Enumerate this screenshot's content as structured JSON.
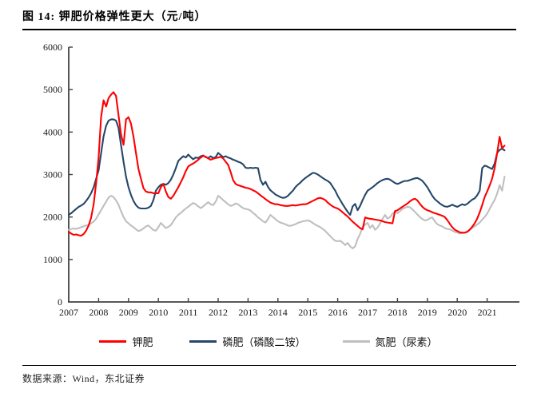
{
  "header": {
    "title": "图 14: 钾肥价格弹性更大（元/吨）"
  },
  "footer": {
    "source": "数据来源：Wind，东北证券"
  },
  "chart_data": {
    "type": "line",
    "title": "钾肥价格弹性更大（元/吨）",
    "xlabel": "",
    "ylabel": "",
    "unit": "元/吨",
    "x_start": "2007-01",
    "frequency": "monthly",
    "x_tick_labels": [
      "2007",
      "2008",
      "2009",
      "2010",
      "2011",
      "2012",
      "2013",
      "2014",
      "2015",
      "2016",
      "2017",
      "2018",
      "2019",
      "2020",
      "2021"
    ],
    "ylim": [
      0,
      6000
    ],
    "y_ticks": [
      0,
      1000,
      2000,
      3000,
      4000,
      5000,
      6000
    ],
    "grid": false,
    "legend_position": "bottom",
    "axis_color": "#404040",
    "series": [
      {
        "name": "钾肥",
        "color": "#fe0000",
        "values": [
          1650,
          1610,
          1580,
          1590,
          1570,
          1560,
          1600,
          1680,
          1800,
          1980,
          2300,
          2800,
          3400,
          4350,
          4750,
          4600,
          4800,
          4880,
          4940,
          4850,
          4400,
          3950,
          3700,
          4300,
          4350,
          4200,
          3900,
          3500,
          3130,
          2900,
          2680,
          2600,
          2580,
          2580,
          2560,
          2560,
          2560,
          2700,
          2780,
          2600,
          2470,
          2430,
          2500,
          2600,
          2700,
          2820,
          2940,
          3080,
          3190,
          3230,
          3260,
          3300,
          3350,
          3400,
          3440,
          3420,
          3380,
          3350,
          3370,
          3390,
          3400,
          3420,
          3380,
          3300,
          3230,
          3060,
          2870,
          2780,
          2750,
          2730,
          2710,
          2690,
          2680,
          2660,
          2630,
          2600,
          2560,
          2510,
          2470,
          2420,
          2380,
          2340,
          2320,
          2300,
          2300,
          2280,
          2270,
          2260,
          2260,
          2270,
          2280,
          2270,
          2280,
          2290,
          2300,
          2300,
          2320,
          2350,
          2380,
          2410,
          2440,
          2450,
          2430,
          2400,
          2340,
          2290,
          2250,
          2220,
          2200,
          2160,
          2110,
          2060,
          2010,
          1950,
          1890,
          1840,
          1790,
          1740,
          1710,
          1990,
          1970,
          1960,
          1950,
          1940,
          1930,
          1920,
          1900,
          1880,
          1870,
          1860,
          1850,
          2140,
          2160,
          2200,
          2240,
          2280,
          2320,
          2370,
          2410,
          2430,
          2390,
          2310,
          2240,
          2190,
          2160,
          2140,
          2110,
          2090,
          2070,
          2050,
          2030,
          2000,
          1930,
          1840,
          1760,
          1700,
          1670,
          1640,
          1630,
          1630,
          1650,
          1700,
          1770,
          1850,
          1960,
          2110,
          2280,
          2470,
          2600,
          2740,
          2900,
          3150,
          3500,
          3890,
          3620,
          3680
        ]
      },
      {
        "name": "磷肥（磷酸二铵）",
        "color": "#254769",
        "values": [
          2050,
          2090,
          2140,
          2190,
          2240,
          2270,
          2310,
          2380,
          2460,
          2560,
          2700,
          2900,
          3100,
          3500,
          3900,
          4150,
          4270,
          4300,
          4300,
          4270,
          4100,
          3700,
          3300,
          2950,
          2700,
          2520,
          2380,
          2280,
          2220,
          2200,
          2200,
          2200,
          2220,
          2260,
          2400,
          2620,
          2700,
          2760,
          2780,
          2760,
          2800,
          2880,
          3000,
          3150,
          3320,
          3380,
          3430,
          3400,
          3470,
          3410,
          3360,
          3400,
          3390,
          3430,
          3450,
          3410,
          3390,
          3430,
          3390,
          3410,
          3510,
          3460,
          3410,
          3430,
          3400,
          3380,
          3350,
          3330,
          3300,
          3280,
          3240,
          3160,
          3150,
          3160,
          3150,
          3160,
          3150,
          2870,
          2760,
          2830,
          2710,
          2630,
          2580,
          2530,
          2500,
          2470,
          2450,
          2460,
          2500,
          2560,
          2620,
          2700,
          2760,
          2810,
          2870,
          2920,
          2960,
          3000,
          3040,
          3030,
          3000,
          2960,
          2920,
          2880,
          2850,
          2800,
          2710,
          2620,
          2500,
          2400,
          2300,
          2210,
          2120,
          2050,
          2250,
          2310,
          2160,
          2260,
          2400,
          2520,
          2620,
          2660,
          2700,
          2750,
          2800,
          2840,
          2870,
          2890,
          2900,
          2880,
          2840,
          2800,
          2780,
          2800,
          2830,
          2850,
          2850,
          2870,
          2890,
          2910,
          2920,
          2890,
          2850,
          2780,
          2700,
          2600,
          2500,
          2420,
          2370,
          2320,
          2280,
          2250,
          2240,
          2260,
          2290,
          2260,
          2240,
          2270,
          2300,
          2280,
          2310,
          2360,
          2410,
          2440,
          2510,
          2620,
          3150,
          3210,
          3190,
          3160,
          3130,
          3260,
          3510,
          3580,
          3610,
          3570
        ]
      },
      {
        "name": "氮肥（尿素）",
        "color": "#bfbfbf",
        "values": [
          1700,
          1720,
          1730,
          1720,
          1740,
          1760,
          1780,
          1800,
          1820,
          1850,
          1890,
          1960,
          2060,
          2160,
          2260,
          2360,
          2460,
          2500,
          2470,
          2390,
          2290,
          2140,
          2000,
          1900,
          1850,
          1800,
          1760,
          1710,
          1670,
          1690,
          1730,
          1780,
          1800,
          1750,
          1690,
          1680,
          1760,
          1860,
          1800,
          1740,
          1770,
          1810,
          1900,
          1990,
          2050,
          2100,
          2150,
          2200,
          2240,
          2290,
          2330,
          2300,
          2250,
          2210,
          2250,
          2300,
          2350,
          2300,
          2280,
          2360,
          2500,
          2450,
          2400,
          2350,
          2300,
          2260,
          2280,
          2320,
          2300,
          2250,
          2210,
          2190,
          2180,
          2150,
          2100,
          2050,
          1990,
          1950,
          1900,
          1870,
          1950,
          2050,
          2000,
          1950,
          1900,
          1870,
          1850,
          1830,
          1800,
          1790,
          1810,
          1830,
          1860,
          1880,
          1900,
          1910,
          1920,
          1900,
          1860,
          1820,
          1790,
          1760,
          1720,
          1670,
          1610,
          1550,
          1490,
          1440,
          1430,
          1440,
          1400,
          1340,
          1390,
          1310,
          1260,
          1310,
          1480,
          1600,
          1760,
          1820,
          1860,
          1740,
          1810,
          1700,
          1750,
          1850,
          1950,
          2050,
          1960,
          2000,
          2080,
          2130,
          2090,
          2140,
          2190,
          2220,
          2240,
          2230,
          2180,
          2120,
          2060,
          2000,
          1950,
          1920,
          1930,
          1970,
          1990,
          1900,
          1830,
          1800,
          1780,
          1740,
          1720,
          1710,
          1680,
          1650,
          1630,
          1610,
          1620,
          1630,
          1660,
          1700,
          1740,
          1780,
          1820,
          1870,
          1940,
          2000,
          2080,
          2190,
          2300,
          2400,
          2550,
          2750,
          2620,
          2950
        ]
      }
    ]
  }
}
